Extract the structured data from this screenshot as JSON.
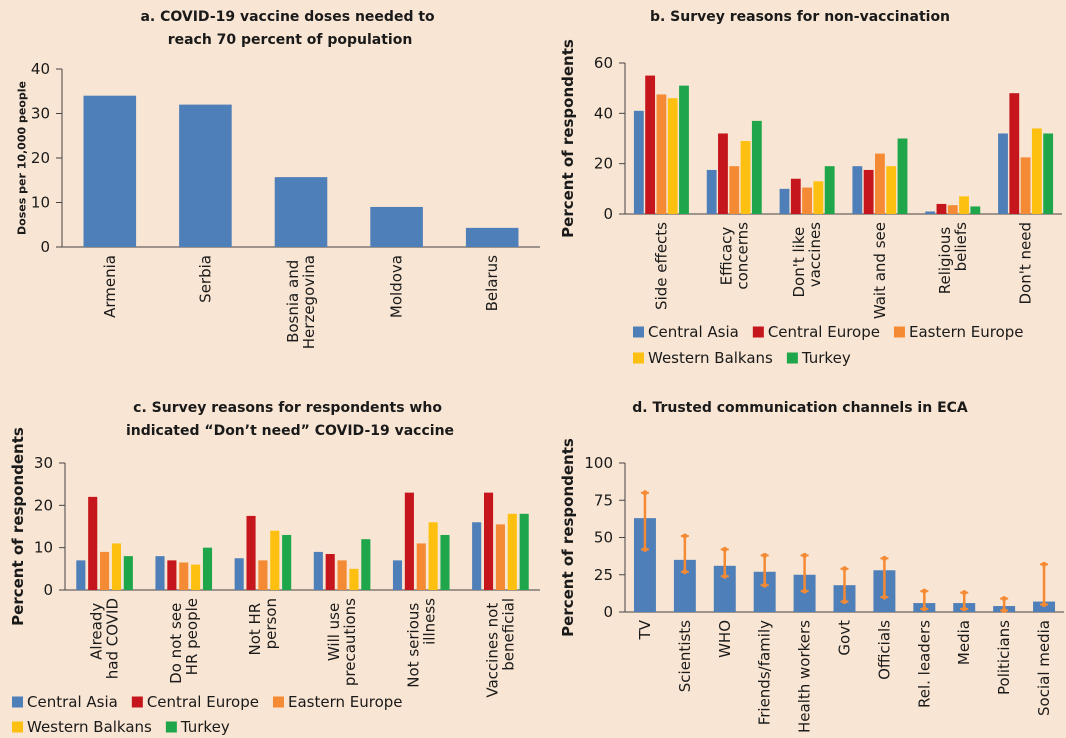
{
  "chart_data": [
    {
      "type": "bar",
      "title": "a. COVID-19 vaccine doses needed to reach 70 percent of population",
      "y_label": "Doses per 10,000 people",
      "categories": [
        "Armenia",
        "Serbia",
        "Bosnia and Herzegovina",
        "Moldova",
        "Belarus"
      ],
      "values": [
        34,
        32,
        15.7,
        9,
        4.3
      ],
      "color": "#4f7fb8",
      "ylim": [
        0,
        40
      ],
      "yticks": [
        0,
        10,
        20,
        30,
        40
      ]
    },
    {
      "type": "bar",
      "title": "b. Survey reasons for non-vaccination",
      "y_label": "Percent of respondents",
      "categories": [
        "Side effects",
        "Efficacy concerns",
        "Don't like vaccines",
        "Wait and see",
        "Religious beliefs",
        "Don't need"
      ],
      "series": [
        {
          "name": "Central Asia",
          "color": "#4f7fb8",
          "values": [
            41,
            17.5,
            10,
            19,
            1,
            32
          ]
        },
        {
          "name": "Central Europe",
          "color": "#c4161c",
          "values": [
            55,
            32,
            14,
            17.5,
            4,
            48
          ]
        },
        {
          "name": "Eastern Europe",
          "color": "#f58a34",
          "values": [
            47.5,
            19,
            10.5,
            24,
            3.5,
            22.5
          ]
        },
        {
          "name": "Western Balkans",
          "color": "#fdc010",
          "values": [
            46,
            29,
            13,
            19,
            7,
            34
          ]
        },
        {
          "name": "Turkey",
          "color": "#1fa64a",
          "values": [
            51,
            37,
            19,
            30,
            3,
            32
          ]
        }
      ],
      "ylim": [
        0,
        60
      ],
      "yticks": [
        0,
        20,
        40,
        60
      ]
    },
    {
      "type": "bar",
      "title": "c. Survey reasons for respondents who indicated “Don’t need” COVID-19 vaccine",
      "y_label": "Percent of respondents",
      "categories": [
        "Already had COVID",
        "Do not see HR people",
        "Not HR person",
        "Will use precautions",
        "Not serious illness",
        "Vaccines not beneficial"
      ],
      "series": [
        {
          "name": "Central Asia",
          "color": "#4f7fb8",
          "values": [
            7,
            8,
            7.5,
            9,
            7,
            16
          ]
        },
        {
          "name": "Central Europe",
          "color": "#c4161c",
          "values": [
            22,
            7,
            17.5,
            8.5,
            23,
            23
          ]
        },
        {
          "name": "Eastern Europe",
          "color": "#f58a34",
          "values": [
            9,
            6.5,
            7,
            7,
            11,
            15.5
          ]
        },
        {
          "name": "Western Balkans",
          "color": "#fdc010",
          "values": [
            11,
            6,
            14,
            5,
            16,
            18
          ]
        },
        {
          "name": "Turkey",
          "color": "#1fa64a",
          "values": [
            8,
            10,
            13,
            12,
            13,
            18
          ]
        }
      ],
      "ylim": [
        0,
        30
      ],
      "yticks": [
        0,
        10,
        20,
        30
      ]
    },
    {
      "type": "bar",
      "title": "d. Trusted communication channels in ECA",
      "y_label": "Percent of respondents",
      "categories": [
        "TV",
        "Scientists",
        "WHO",
        "Friends/family",
        "Health workers",
        "Govt",
        "Officials",
        "Rel. leaders",
        "Media",
        "Politicians",
        "Social media"
      ],
      "values": [
        63,
        35,
        31,
        27,
        25,
        18,
        28,
        6,
        6,
        4,
        7
      ],
      "color": "#4f7fb8",
      "ci_low": [
        42,
        27,
        24,
        18,
        14,
        7,
        10,
        2,
        2,
        1,
        5
      ],
      "ci_high": [
        80,
        51,
        42,
        38,
        38,
        29,
        36,
        14,
        13,
        9,
        32
      ],
      "error_color": "#f58a34",
      "ylim": [
        0,
        100
      ],
      "yticks": [
        0,
        25,
        50,
        75,
        100
      ]
    }
  ]
}
